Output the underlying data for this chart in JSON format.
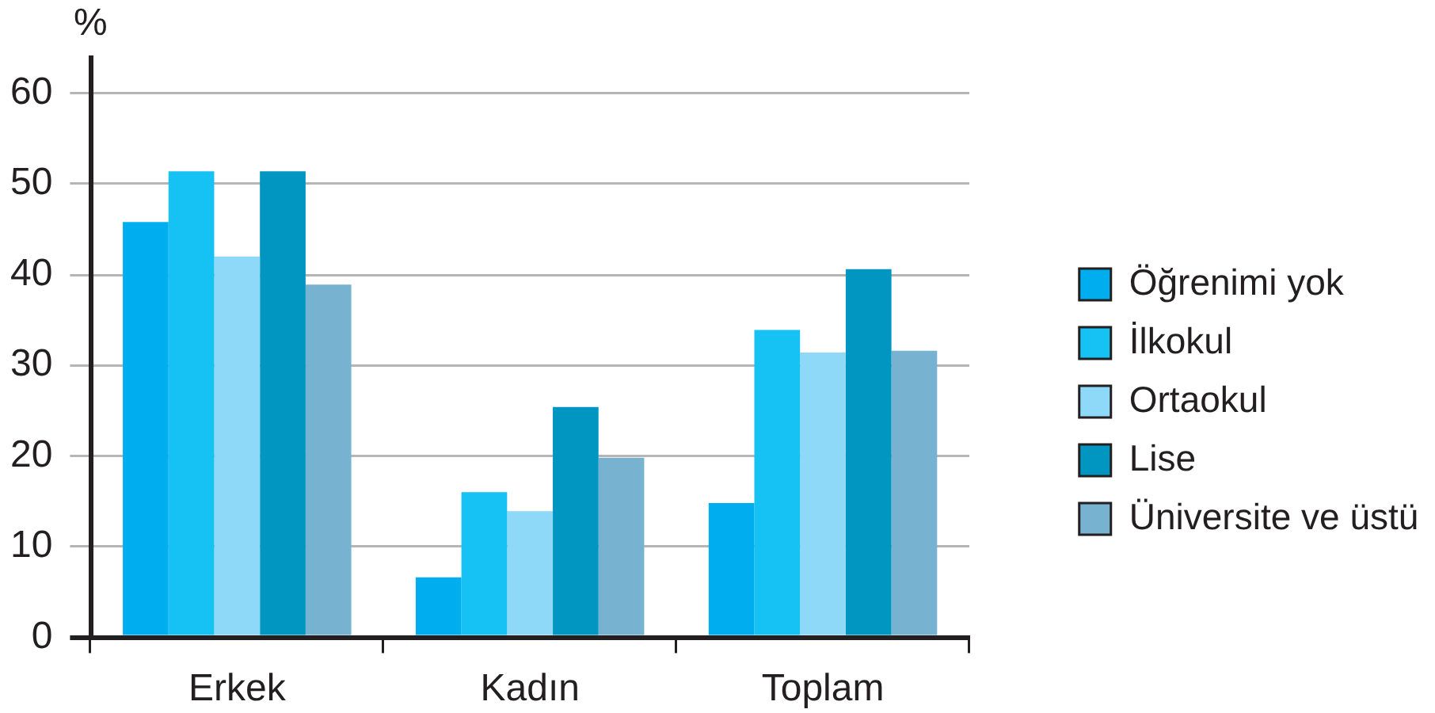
{
  "chart_data": {
    "type": "bar",
    "ylabel": "%",
    "categories": [
      "Erkek",
      "Kadın",
      "Toplam"
    ],
    "series": [
      {
        "name": "Öğrenimi yok",
        "color": "#00aeef",
        "values": [
          45.8,
          6.6,
          14.8
        ]
      },
      {
        "name": "İlkokul",
        "color": "#16c1f3",
        "values": [
          51.4,
          16.0,
          33.9
        ]
      },
      {
        "name": "Ortaokul",
        "color": "#8ed8f8",
        "values": [
          42.0,
          13.9,
          31.4
        ]
      },
      {
        "name": "Lise",
        "color": "#0096c1",
        "values": [
          51.4,
          25.4,
          40.6
        ]
      },
      {
        "name": "Üniversite ve üstü",
        "color": "#77b3d1",
        "values": [
          38.9,
          19.8,
          31.6
        ]
      }
    ],
    "ylim": [
      0,
      64
    ],
    "yticks": [
      0,
      10,
      20,
      30,
      40,
      50,
      60
    ],
    "grid": "y",
    "legend": "right"
  }
}
